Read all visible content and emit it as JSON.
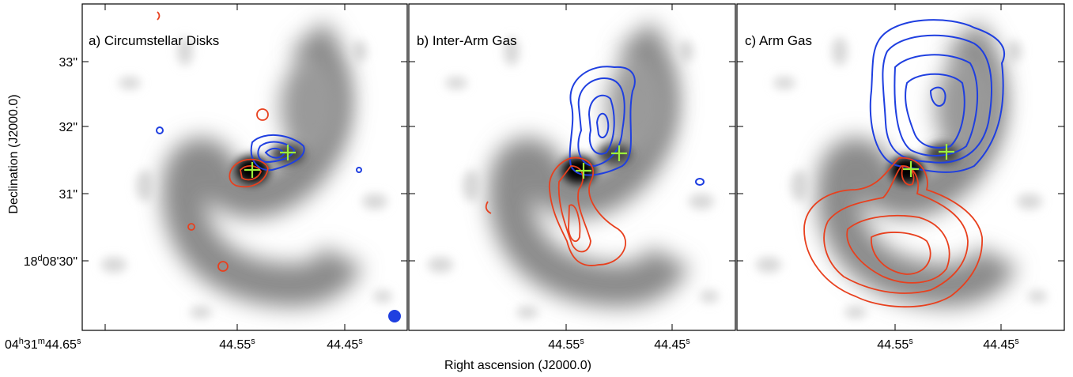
{
  "panels": [
    {
      "title": "a) Circumstellar Disks"
    },
    {
      "title": "b) Inter-Arm Gas"
    },
    {
      "title": "c) Arm Gas"
    }
  ],
  "x_axis": {
    "label": "Right ascension (J2000.0)",
    "ticks_a": [
      [
        "04",
        "h",
        "31",
        "m",
        "44.65",
        "s"
      ],
      [
        "44.55",
        "s"
      ],
      [
        "44.45",
        "s"
      ]
    ],
    "ticks_b": [
      [
        "44.55",
        "s"
      ],
      [
        "44.45",
        "s"
      ]
    ],
    "ticks_c": [
      [
        "44.55",
        "s"
      ],
      [
        "44.45",
        "s"
      ]
    ]
  },
  "y_axis": {
    "label": "Declination (J2000.0)",
    "ticks": [
      [
        "33\""
      ],
      [
        "32\""
      ],
      [
        "31\""
      ],
      [
        "18",
        "d",
        "08'30\""
      ]
    ]
  }
}
